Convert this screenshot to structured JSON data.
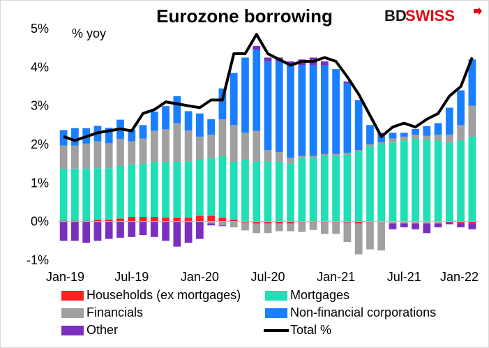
{
  "title": "Eurozone borrowing",
  "brand": {
    "text_bd": "BD",
    "text_swiss": "SWISS",
    "bd_color": "#1a1a1a",
    "swiss_color": "#e30613"
  },
  "chart_data": {
    "type": "bar",
    "stacked": true,
    "ylabel": "% yoy",
    "ylim": [
      -1,
      5
    ],
    "yticks": [
      "-1%",
      "0%",
      "1%",
      "2%",
      "3%",
      "4%",
      "5%"
    ],
    "xtick_labels": [
      "Jan-19",
      "Jul-19",
      "Jan-20",
      "Jul-20",
      "Jan-21",
      "Jul-21",
      "Jan-22"
    ],
    "xtick_positions": [
      0,
      6,
      12,
      18,
      24,
      30,
      36
    ],
    "categories": [
      "2019-01",
      "2019-02",
      "2019-03",
      "2019-04",
      "2019-05",
      "2019-06",
      "2019-07",
      "2019-08",
      "2019-09",
      "2019-10",
      "2019-11",
      "2019-12",
      "2020-01",
      "2020-02",
      "2020-03",
      "2020-04",
      "2020-05",
      "2020-06",
      "2020-07",
      "2020-08",
      "2020-09",
      "2020-10",
      "2020-11",
      "2020-12",
      "2021-01",
      "2021-02",
      "2021-03",
      "2021-04",
      "2021-05",
      "2021-06",
      "2021-07",
      "2021-08",
      "2021-09",
      "2021-10",
      "2021-11",
      "2021-12",
      "2022-01"
    ],
    "series": [
      {
        "name": "Households (ex mortgages)",
        "color": "#ff2020",
        "values": [
          0.02,
          0.02,
          0.02,
          0.05,
          0.05,
          0.08,
          0.12,
          0.12,
          0.12,
          0.1,
          0.1,
          0.1,
          0.15,
          0.15,
          0.1,
          0.05,
          -0.03,
          -0.05,
          -0.05,
          -0.05,
          -0.05,
          -0.02,
          -0.02,
          -0.02,
          -0.02,
          -0.03,
          -0.05,
          -0.02,
          0,
          0,
          0,
          0,
          0,
          0,
          -0.02,
          -0.05,
          -0.05
        ]
      },
      {
        "name": "Mortgages",
        "color": "#1ee0b4",
        "values": [
          1.35,
          1.35,
          1.35,
          1.33,
          1.33,
          1.36,
          1.36,
          1.38,
          1.43,
          1.44,
          1.45,
          1.46,
          1.45,
          1.5,
          1.6,
          1.5,
          1.6,
          1.55,
          1.55,
          1.55,
          1.5,
          1.65,
          1.65,
          1.7,
          1.7,
          1.73,
          1.8,
          1.95,
          2.0,
          2.05,
          2.1,
          2.15,
          2.12,
          2.1,
          2.05,
          2.1,
          2.2
        ]
      },
      {
        "name": "Financials",
        "color": "#a0a0a0",
        "values": [
          0.6,
          0.6,
          0.65,
          0.7,
          0.65,
          0.7,
          0.6,
          0.65,
          0.8,
          0.85,
          1.0,
          0.8,
          0.6,
          0.6,
          0.95,
          0.95,
          0.7,
          0.8,
          0.3,
          0.25,
          0.15,
          0.05,
          0.05,
          0.05,
          0.05,
          0.05,
          0.05,
          0.05,
          0.05,
          0.1,
          0.1,
          0.1,
          0.1,
          0.15,
          0.2,
          0.4,
          0.8
        ]
      },
      {
        "name": "Non-financial corporations",
        "color": "#1a7fff",
        "values": [
          0.4,
          0.45,
          0.4,
          0.4,
          0.4,
          0.5,
          0.3,
          0.35,
          0.5,
          0.6,
          0.7,
          0.5,
          0.6,
          0.4,
          0.8,
          1.35,
          1.95,
          2.1,
          2.3,
          2.35,
          2.4,
          2.35,
          2.35,
          2.3,
          2.2,
          1.8,
          1.3,
          0.5,
          0.2,
          0.15,
          0.1,
          0.15,
          0.25,
          0.3,
          0.7,
          0.9,
          1.2
        ]
      },
      {
        "name": "Other",
        "color": "#7b2fbe",
        "values": [
          -0.5,
          -0.5,
          -0.55,
          -0.5,
          -0.45,
          -0.42,
          -0.4,
          -0.35,
          -0.4,
          -0.5,
          -0.65,
          -0.55,
          -0.45,
          -0.05,
          -0.02,
          0,
          0,
          0.1,
          0.1,
          0.1,
          0.1,
          0.15,
          0.2,
          0.1,
          0,
          0.05,
          0,
          0,
          0.05,
          0,
          0,
          0,
          0,
          0,
          0,
          0,
          0
        ]
      }
    ],
    "negative_values": {
      "Financials": [
        0,
        0,
        0,
        0,
        0,
        0,
        0,
        0,
        0,
        0,
        0,
        0,
        0,
        -0.05,
        -0.1,
        -0.15,
        -0.2,
        -0.25,
        -0.25,
        -0.2,
        -0.2,
        -0.25,
        -0.2,
        -0.3,
        -0.3,
        -0.5,
        -0.8,
        -0.7,
        -0.75,
        -0.05,
        -0.05,
        -0.05,
        -0.05,
        -0.05,
        0,
        0,
        0
      ],
      "Other": [
        0,
        0,
        0,
        0,
        0,
        0,
        0,
        0,
        0,
        0,
        0,
        0,
        0,
        0,
        0,
        0,
        0,
        0,
        0,
        0,
        0,
        0,
        0,
        0,
        0,
        0,
        0,
        0,
        0,
        -0.15,
        -0.1,
        -0.15,
        -0.25,
        -0.1,
        -0.05,
        -0.1,
        -0.15
      ]
    },
    "line": {
      "name": "Total %",
      "color": "#000000",
      "values": [
        2.2,
        2.1,
        2.2,
        2.3,
        2.35,
        2.4,
        2.35,
        2.8,
        2.9,
        3.1,
        3.05,
        3.0,
        2.95,
        3.15,
        3.15,
        4.35,
        4.35,
        4.85,
        4.35,
        4.2,
        4.05,
        4.15,
        4.15,
        4.25,
        4.15,
        3.75,
        3.3,
        2.75,
        2.2,
        2.45,
        2.55,
        2.45,
        2.65,
        2.8,
        3.25,
        3.5,
        4.25
      ]
    }
  },
  "legend": [
    {
      "label": "Households (ex mortgages)",
      "color": "#ff2020",
      "kind": "box"
    },
    {
      "label": "Mortgages",
      "color": "#1ee0b4",
      "kind": "box"
    },
    {
      "label": "Financials",
      "color": "#a0a0a0",
      "kind": "box"
    },
    {
      "label": "Non-financial corporations",
      "color": "#1a7fff",
      "kind": "box"
    },
    {
      "label": "Other",
      "color": "#7b2fbe",
      "kind": "box"
    },
    {
      "label": "Total %",
      "color": "#000000",
      "kind": "line"
    }
  ]
}
